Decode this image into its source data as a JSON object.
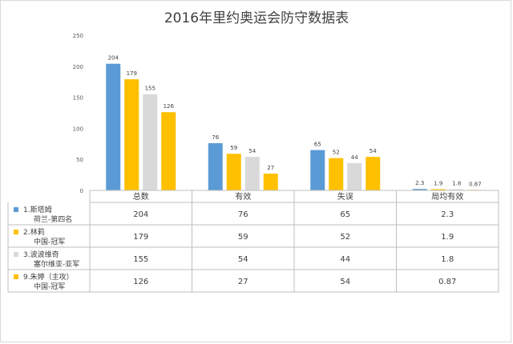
{
  "chart_data": {
    "type": "bar",
    "title": "2016年里约奥运会防守数据表",
    "categories": [
      "总数",
      "有效",
      "失误",
      "局均有效"
    ],
    "ylim": [
      0,
      250
    ],
    "yticks": [
      0,
      50,
      100,
      150,
      200,
      250
    ],
    "grid": false,
    "legend": "data-table-left",
    "series": [
      {
        "name_lines": [
          "1.斯塔姆",
          "荷兰-第四名"
        ],
        "color": "#5b9bd5",
        "values": [
          204,
          76,
          65,
          2.3
        ],
        "labels": [
          "204",
          "76",
          "65",
          "2.3"
        ]
      },
      {
        "name_lines": [
          "2.林莉",
          "中国-冠军"
        ],
        "color": "#ffc000",
        "values": [
          179,
          59,
          52,
          1.9
        ],
        "labels": [
          "179",
          "59",
          "52",
          "1.9"
        ]
      },
      {
        "name_lines": [
          "3.波波维奇",
          "塞尔维亚-亚军"
        ],
        "color": "#d9d9d9",
        "values": [
          155,
          54,
          44,
          1.8
        ],
        "labels": [
          "155",
          "54",
          "44",
          "1.8"
        ]
      },
      {
        "name_lines": [
          "9.朱婷（主攻）",
          "中国-冠军"
        ],
        "color": "#ffc000",
        "values": [
          126,
          27,
          54,
          0.87
        ],
        "labels": [
          "126",
          "27",
          "54",
          "0.87"
        ]
      }
    ]
  }
}
